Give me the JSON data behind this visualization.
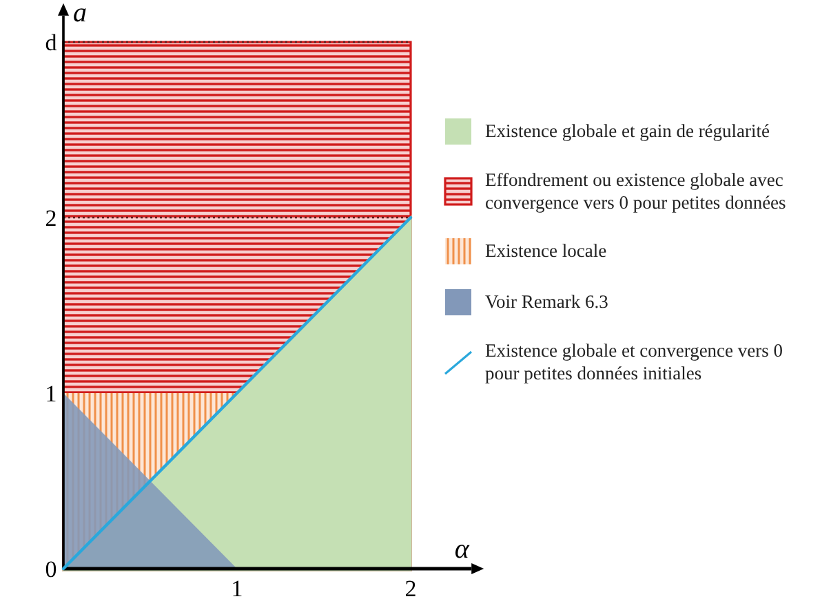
{
  "chart_data": {
    "type": "area",
    "xlabel": "α",
    "ylabel": "a",
    "xlim": [
      0,
      2.35
    ],
    "ylim": [
      0,
      3.15
    ],
    "xticks": [
      1,
      2
    ],
    "yticks": [
      0,
      1,
      2,
      {
        "value": 3,
        "label": "d"
      }
    ],
    "grid": false,
    "legend": "right",
    "ref_lines": [
      {
        "axis": "y",
        "value": 2,
        "color": "#5b1f1f",
        "line_style": "dotted"
      },
      {
        "axis": "y",
        "value": 3,
        "color": "#5b1f1f",
        "line_style": "dotted"
      }
    ],
    "series": [
      {
        "name": "Existence globale et gain de régularité",
        "color": "#c5e0b4",
        "x": [
          0,
          2
        ],
        "values": [
          0,
          2
        ]
      },
      {
        "name": "Effondrement ou existence globale avec convergence vers 0 pour petites données",
        "color": "#d01c1c",
        "x": [
          0,
          2
        ],
        "values": [
          3,
          3
        ]
      },
      {
        "name": "Existence locale",
        "color": "#f0904a",
        "x": [
          0,
          1
        ],
        "values": [
          1,
          1
        ]
      },
      {
        "name": "Voir Remark 6.3",
        "color": "#8298b9",
        "x": [
          0,
          1
        ],
        "values": [
          1,
          0
        ]
      },
      {
        "name": "Existence globale et convergence vers 0 pour petites données initiales",
        "type": "line",
        "color": "#2aa8dc",
        "x": [
          0,
          1,
          2
        ],
        "values": [
          0,
          1,
          2
        ]
      }
    ]
  }
}
